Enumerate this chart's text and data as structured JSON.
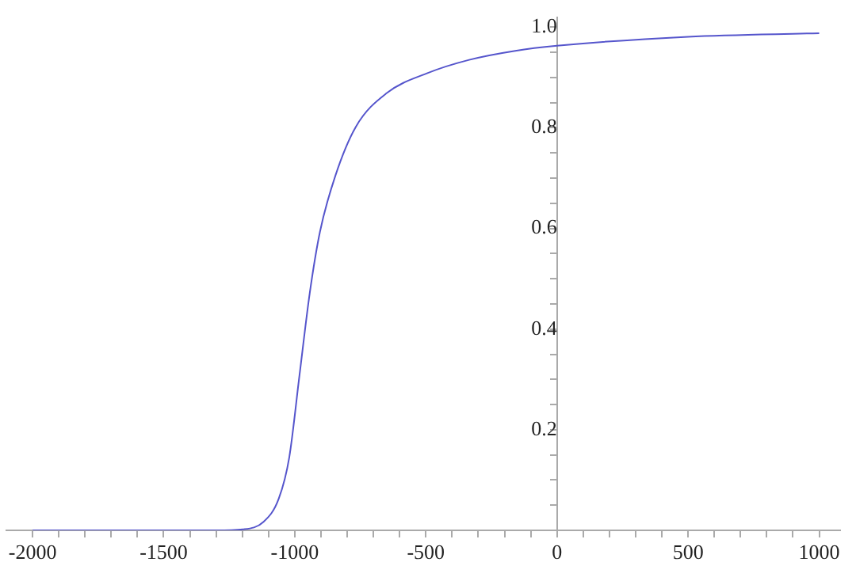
{
  "chart_data": {
    "type": "line",
    "x": [
      -2000,
      -1500,
      -1300,
      -1198,
      -1119,
      -1061,
      -1021,
      -982,
      -943,
      -904,
      -845,
      -767,
      -649,
      -492,
      -335,
      -159,
      0,
      500,
      1000
    ],
    "series": [
      {
        "color": "#5555cc",
        "values": [
          0,
          0,
          0,
          0.002,
          0.017,
          0.063,
          0.145,
          0.308,
          0.471,
          0.593,
          0.705,
          0.802,
          0.869,
          0.909,
          0.935,
          0.953,
          0.963,
          0.981,
          0.988
        ]
      }
    ],
    "xlim": [
      -2100,
      1080
    ],
    "ylim": [
      0,
      1.02
    ],
    "xticks": [
      -2000,
      {
        "value": -1900,
        "label": null
      },
      {
        "value": -1800,
        "label": null
      },
      {
        "value": -1700,
        "label": null
      },
      {
        "value": -1600,
        "label": null
      },
      -1500,
      {
        "value": -1400,
        "label": null
      },
      {
        "value": -1300,
        "label": null
      },
      {
        "value": -1200,
        "label": null
      },
      {
        "value": -1100,
        "label": null
      },
      -1000,
      {
        "value": -900,
        "label": null
      },
      {
        "value": -800,
        "label": null
      },
      {
        "value": -700,
        "label": null
      },
      {
        "value": -600,
        "label": null
      },
      -500,
      {
        "value": -400,
        "label": null
      },
      {
        "value": -300,
        "label": null
      },
      {
        "value": -200,
        "label": null
      },
      {
        "value": -100,
        "label": null
      },
      0,
      {
        "value": 100,
        "label": null
      },
      {
        "value": 200,
        "label": null
      },
      {
        "value": 300,
        "label": null
      },
      {
        "value": 400,
        "label": null
      },
      500,
      {
        "value": 600,
        "label": null
      },
      {
        "value": 700,
        "label": null
      },
      {
        "value": 800,
        "label": null
      },
      {
        "value": 900,
        "label": null
      },
      1000
    ],
    "yticks": [
      {
        "value": 0.05,
        "label": null
      },
      {
        "value": 0.1,
        "label": null
      },
      {
        "value": 0.15,
        "label": null
      },
      0.2,
      {
        "value": 0.25,
        "label": null
      },
      {
        "value": 0.3,
        "label": null
      },
      {
        "value": 0.35,
        "label": null
      },
      0.4,
      {
        "value": 0.45,
        "label": null
      },
      {
        "value": 0.5,
        "label": null
      },
      {
        "value": 0.55,
        "label": null
      },
      0.6,
      {
        "value": 0.65,
        "label": null
      },
      {
        "value": 0.7,
        "label": null
      },
      {
        "value": 0.75,
        "label": null
      },
      0.8,
      {
        "value": 0.85,
        "label": null
      },
      {
        "value": 0.9,
        "label": null
      },
      {
        "value": 0.95,
        "label": null
      },
      {
        "value": 1.0,
        "label": "1.0"
      }
    ],
    "grid": false,
    "legend": false,
    "marker": "none",
    "line_style": "solid"
  }
}
